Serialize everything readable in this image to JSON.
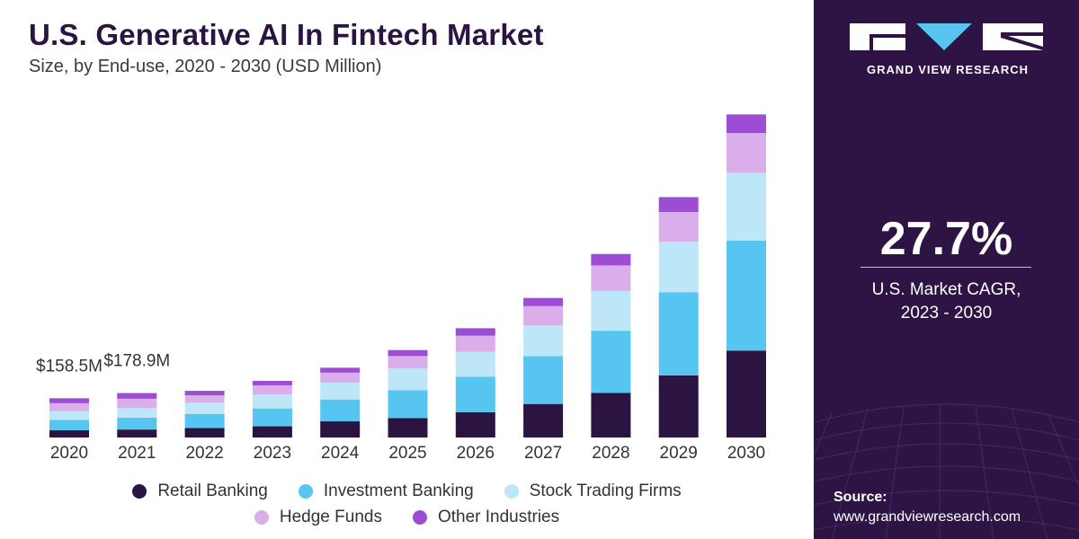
{
  "header": {
    "title": "U.S. Generative AI In Fintech Market",
    "subtitle": "Size, by End-use, 2020 - 2030 (USD Million)"
  },
  "chart_data": {
    "type": "bar",
    "stacked": true,
    "categories": [
      "2020",
      "2021",
      "2022",
      "2023",
      "2024",
      "2025",
      "2026",
      "2027",
      "2028",
      "2029",
      "2030"
    ],
    "series": [
      {
        "name": "Retail Banking",
        "color": "#2b1442",
        "values": [
          29,
          32,
          38,
          45,
          65,
          78,
          102,
          135,
          180,
          250,
          350
        ]
      },
      {
        "name": "Investment Banking",
        "color": "#56c5ef",
        "values": [
          42,
          48,
          57,
          72,
          88,
          112,
          143,
          193,
          250,
          335,
          443
        ]
      },
      {
        "name": "Stock Trading Firms",
        "color": "#bde7f9",
        "values": [
          35,
          38,
          45,
          56,
          68,
          88,
          100,
          123,
          160,
          203,
          273
        ]
      },
      {
        "name": "Hedge Funds",
        "color": "#d9aeea",
        "values": [
          32,
          38,
          30,
          37,
          40,
          50,
          65,
          78,
          103,
          120,
          160
        ]
      },
      {
        "name": "Other Industries",
        "color": "#9d4dd3",
        "values": [
          20,
          23,
          18,
          18,
          20,
          24,
          30,
          33,
          46,
          60,
          75
        ]
      }
    ],
    "annotations": [
      {
        "category": "2020",
        "text": "$158.5M"
      },
      {
        "category": "2021",
        "text": "$178.9M"
      }
    ],
    "ylim": [
      0,
      1400
    ],
    "grid": false,
    "legend_position": "bottom"
  },
  "sidebar": {
    "logo_text": "GRAND VIEW RESEARCH",
    "cagr_value": "27.7%",
    "cagr_label_line1": "U.S. Market CAGR,",
    "cagr_label_line2": "2023 - 2030",
    "source_label": "Source:",
    "source_url": "www.grandviewresearch.com"
  }
}
